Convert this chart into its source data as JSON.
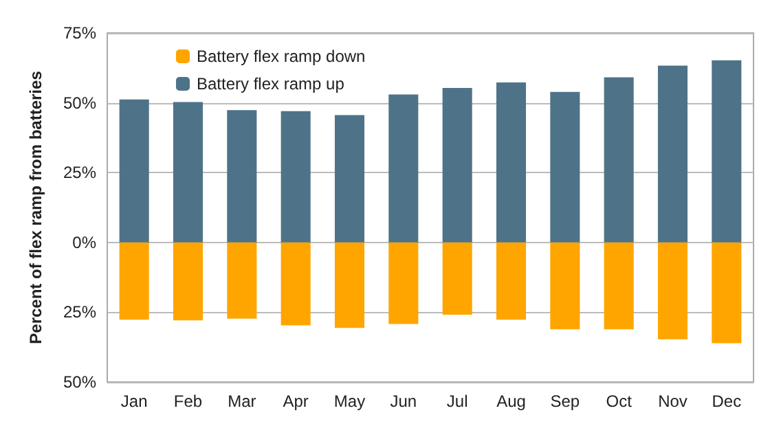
{
  "chart_data": {
    "type": "bar",
    "stacked": true,
    "ylabel": "Percent of flex ramp from batteries",
    "categories": [
      "Jan",
      "Feb",
      "Mar",
      "Apr",
      "May",
      "Jun",
      "Jul",
      "Aug",
      "Sep",
      "Oct",
      "Nov",
      "Dec"
    ],
    "series": [
      {
        "name": "Battery flex ramp down",
        "color": "#ffa500",
        "values": [
          -27.7,
          -27.9,
          -27.3,
          -29.7,
          -30.6,
          -29.2,
          -25.9,
          -27.7,
          -31.1,
          -31.1,
          -34.7,
          -36.1
        ]
      },
      {
        "name": "Battery flex ramp up",
        "color": "#4e7389",
        "values": [
          51.2,
          50.3,
          47.4,
          47,
          45.6,
          53,
          55.3,
          57.3,
          53.9,
          59.1,
          63.3,
          65.2
        ]
      }
    ],
    "ylim": [
      -50,
      75
    ],
    "yticks": [
      {
        "value": -50,
        "label": "50%"
      },
      {
        "value": -25,
        "label": "25%"
      },
      {
        "value": 0,
        "label": "0%"
      },
      {
        "value": 25,
        "label": "25%"
      },
      {
        "value": 50,
        "label": "50%"
      },
      {
        "value": 75,
        "label": "75%"
      }
    ],
    "grid": "y",
    "legend": "top left"
  }
}
